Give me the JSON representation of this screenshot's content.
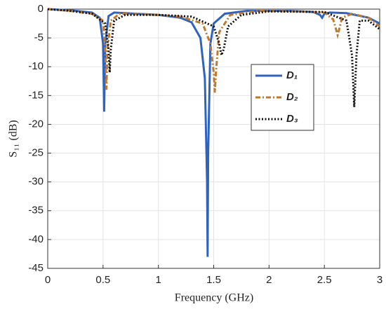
{
  "chart_data": {
    "type": "line",
    "xlabel": "Frequency (GHz)",
    "ylabel": "S₁₁ (dB)",
    "xlim": [
      0,
      3
    ],
    "xticks": [
      0,
      0.5,
      1,
      1.5,
      2,
      2.5,
      3
    ],
    "ylim": [
      -45,
      0
    ],
    "yticks": [
      0,
      -5,
      -10,
      -15,
      -20,
      -25,
      -30,
      -35,
      -40,
      -45
    ],
    "grid": true,
    "legend": "upper right",
    "series": [
      {
        "name": "D₁",
        "color": "#2e63bf",
        "line_style": "solid",
        "x": [
          0,
          0.2,
          0.4,
          0.47,
          0.5,
          0.51,
          0.52,
          0.55,
          0.6,
          0.8,
          1.0,
          1.2,
          1.3,
          1.38,
          1.42,
          1.44,
          1.445,
          1.45,
          1.47,
          1.5,
          1.6,
          1.8,
          2.2,
          2.4,
          2.46,
          2.48,
          2.5,
          2.55,
          2.7,
          2.9,
          3.0
        ],
        "values": [
          0,
          -0.2,
          -0.6,
          -1.5,
          -6,
          -17.8,
          -6,
          -1.2,
          -0.6,
          -0.8,
          -1.0,
          -1.5,
          -2.3,
          -5,
          -12,
          -30,
          -43,
          -25,
          -6,
          -2.5,
          -0.8,
          -0.3,
          -0.3,
          -0.5,
          -1,
          -1.5,
          -0.8,
          -0.6,
          -0.7,
          -1.5,
          -2.5
        ]
      },
      {
        "name": "D₂",
        "color": "#c0782e",
        "line_style": "dashdot",
        "x": [
          0,
          0.2,
          0.4,
          0.5,
          0.52,
          0.53,
          0.54,
          0.57,
          0.65,
          0.9,
          1.2,
          1.4,
          1.47,
          1.5,
          1.51,
          1.52,
          1.55,
          1.65,
          1.9,
          2.3,
          2.5,
          2.58,
          2.61,
          2.62,
          2.63,
          2.66,
          2.75,
          2.9,
          3.0
        ],
        "values": [
          0,
          -0.3,
          -0.8,
          -2,
          -7,
          -14,
          -7,
          -2,
          -0.8,
          -0.9,
          -1.3,
          -2.5,
          -6,
          -11,
          -14.5,
          -11,
          -4,
          -1,
          -0.3,
          -0.4,
          -0.6,
          -1.8,
          -3.8,
          -4.5,
          -3.8,
          -1.5,
          -0.8,
          -1.5,
          -3
        ]
      },
      {
        "name": "D₃",
        "color": "#111111",
        "line_style": "dotted",
        "x": [
          0,
          0.2,
          0.4,
          0.52,
          0.55,
          0.56,
          0.57,
          0.6,
          0.7,
          1.0,
          1.3,
          1.5,
          1.55,
          1.57,
          1.59,
          1.63,
          1.75,
          2.0,
          2.5,
          2.7,
          2.75,
          2.77,
          2.79,
          2.82,
          2.9,
          3.0
        ],
        "values": [
          0,
          -0.3,
          -0.8,
          -2.5,
          -7,
          -11,
          -7,
          -2,
          -1,
          -1,
          -1.3,
          -3,
          -6,
          -8,
          -7,
          -3,
          -1,
          -0.4,
          -0.5,
          -2,
          -8,
          -17,
          -8,
          -2,
          -2,
          -3.5
        ]
      }
    ]
  }
}
